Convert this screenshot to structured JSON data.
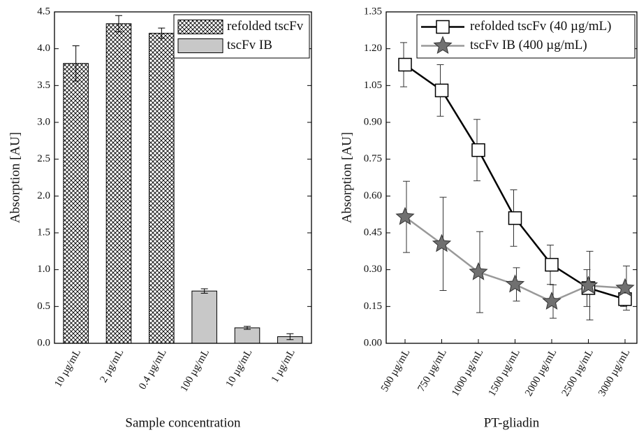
{
  "chart_data": [
    {
      "type": "bar",
      "xlabel": "Sample concentration",
      "ylabel": "Absorption [AU]",
      "categories": [
        "10 µg/mL",
        "2 µg/mL",
        "0.4 µg/mL",
        "100 µg/mL",
        "10 µg/mL",
        "1 µg/mL"
      ],
      "series": [
        {
          "name": "refolded tscFv",
          "color": "#000000",
          "pattern": "crosshatch",
          "values": [
            3.8,
            4.34,
            4.21,
            null,
            null,
            null
          ],
          "errors": [
            0.24,
            0.11,
            0.07,
            null,
            null,
            null
          ]
        },
        {
          "name": "tscFv IB",
          "color": "#c8c8c8",
          "pattern": "solid",
          "values": [
            null,
            null,
            null,
            0.71,
            0.21,
            0.09
          ],
          "errors": [
            null,
            null,
            null,
            0.03,
            0.02,
            0.04
          ]
        }
      ],
      "ylim": [
        0,
        4.5
      ],
      "yticks": [
        {
          "value": 0,
          "label": "0.0"
        },
        0.5,
        {
          "value": 1,
          "label": "1.0"
        },
        1.5,
        {
          "value": 2,
          "label": "2.0"
        },
        2.5,
        {
          "value": 3,
          "label": "3.0"
        },
        3.5,
        {
          "value": 4,
          "label": "4.0"
        },
        4.5
      ],
      "legend": "upper right"
    },
    {
      "type": "line",
      "xlabel": "PT-gliadin",
      "ylabel": "Absorption [AU]",
      "categories": [
        "500 µg/mL",
        "750 µg/mL",
        "1000 µg/mL",
        "1500 µg/mL",
        "2000 µg/mL",
        "2500 µg/mL",
        "3000 µg/mL"
      ],
      "series": [
        {
          "name": "refolded tscFv (40 µg/mL)",
          "color": "#000000",
          "marker": "square",
          "marker_fill": "#ffffff",
          "values": [
            1.135,
            1.03,
            0.787,
            0.51,
            0.32,
            0.225,
            0.18
          ],
          "errors": [
            0.09,
            0.105,
            0.125,
            0.115,
            0.08,
            0.075,
            0.03
          ]
        },
        {
          "name": "tscFv IB (400 µg/mL)",
          "color": "#999999",
          "marker": "star",
          "marker_fill": "#707070",
          "values": [
            0.515,
            0.405,
            0.29,
            0.24,
            0.17,
            0.235,
            0.225
          ],
          "errors": [
            0.145,
            0.19,
            0.165,
            0.068,
            0.068,
            0.14,
            0.09
          ]
        }
      ],
      "ylim": [
        0,
        1.35
      ],
      "yticks": [
        {
          "value": 0,
          "label": "0.00"
        },
        0.15,
        {
          "value": 0.3,
          "label": "0.30"
        },
        0.45,
        {
          "value": 0.6,
          "label": "0.60"
        },
        0.75,
        {
          "value": 0.9,
          "label": "0.90"
        },
        1.05,
        {
          "value": 1.2,
          "label": "1.20"
        },
        1.35
      ],
      "legend": "upper right"
    }
  ]
}
